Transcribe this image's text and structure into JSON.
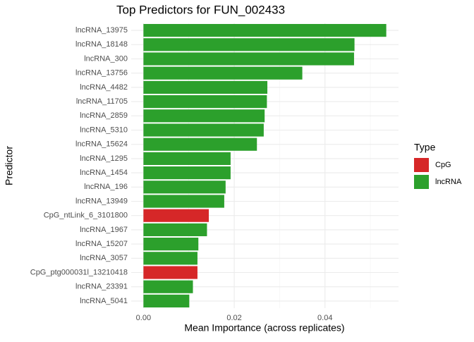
{
  "chart_data": {
    "type": "barh",
    "title": "Top Predictors for FUN_002433",
    "x_label": "Mean Importance (across replicates)",
    "y_label": "Predictor",
    "categories": [
      "lncRNA_13975",
      "lncRNA_18148",
      "lncRNA_300",
      "lncRNA_13756",
      "lncRNA_4482",
      "lncRNA_11705",
      "lncRNA_2859",
      "lncRNA_5310",
      "lncRNA_15624",
      "lncRNA_1295",
      "lncRNA_1454",
      "lncRNA_196",
      "lncRNA_13949",
      "CpG_ntLink_6_3101800",
      "lncRNA_1967",
      "lncRNA_15207",
      "lncRNA_3057",
      "CpG_ptg000031l_13210418",
      "lncRNA_23391",
      "lncRNA_5041"
    ],
    "series": [
      {
        "name": "CpG",
        "color": "#d62728",
        "values": [
          null,
          null,
          null,
          null,
          null,
          null,
          null,
          null,
          null,
          null,
          null,
          null,
          null,
          0.0144,
          null,
          null,
          null,
          0.0119,
          null,
          null
        ]
      },
      {
        "name": "lncRNA",
        "color": "#2ca02c",
        "values": [
          0.0535,
          0.0465,
          0.0464,
          0.035,
          0.0273,
          0.0272,
          0.0267,
          0.0265,
          0.025,
          0.0192,
          0.0192,
          0.0181,
          0.0178,
          null,
          0.014,
          0.0121,
          0.0119,
          null,
          0.0109,
          0.0101
        ]
      }
    ],
    "legend_title": "Type",
    "xlim": [
      -0.0027,
      0.0562
    ],
    "xticks": [
      {
        "value": 0,
        "label": "0.00"
      },
      0.02,
      0.04
    ],
    "minor_xticks": [
      0.01,
      0.03,
      0.05
    ],
    "grid": true
  }
}
